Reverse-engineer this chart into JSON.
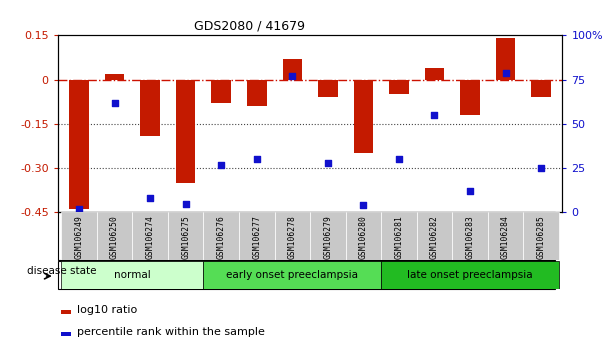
{
  "title": "GDS2080 / 41679",
  "samples": [
    "GSM106249",
    "GSM106250",
    "GSM106274",
    "GSM106275",
    "GSM106276",
    "GSM106277",
    "GSM106278",
    "GSM106279",
    "GSM106280",
    "GSM106281",
    "GSM106282",
    "GSM106283",
    "GSM106284",
    "GSM106285"
  ],
  "log10_ratio": [
    -0.44,
    0.02,
    -0.19,
    -0.35,
    -0.08,
    -0.09,
    0.07,
    -0.06,
    -0.25,
    -0.05,
    0.04,
    -0.12,
    0.14,
    -0.06
  ],
  "percentile_rank": [
    2,
    62,
    8,
    5,
    27,
    30,
    77,
    28,
    4,
    30,
    55,
    12,
    79,
    25
  ],
  "ylim_left": [
    -0.45,
    0.15
  ],
  "ylim_right": [
    0,
    100
  ],
  "yticks_left": [
    0.15,
    0,
    -0.15,
    -0.3,
    -0.45
  ],
  "yticks_right": [
    100,
    75,
    50,
    25,
    0
  ],
  "bar_color": "#C41A00",
  "dot_color": "#1010CC",
  "groups": [
    {
      "label": "normal",
      "start": 0,
      "end": 3,
      "color": "#CCFFCC"
    },
    {
      "label": "early onset preeclampsia",
      "start": 4,
      "end": 8,
      "color": "#55DD55"
    },
    {
      "label": "late onset preeclampsia",
      "start": 9,
      "end": 13,
      "color": "#22BB22"
    }
  ],
  "legend_bar_label": "log10 ratio",
  "legend_dot_label": "percentile rank within the sample",
  "disease_state_label": "disease state",
  "zero_line_color": "#CC1100",
  "dotted_line_color": "#444444",
  "xtick_bg_color": "#C8C8C8",
  "xtick_sep_color": "#FFFFFF"
}
